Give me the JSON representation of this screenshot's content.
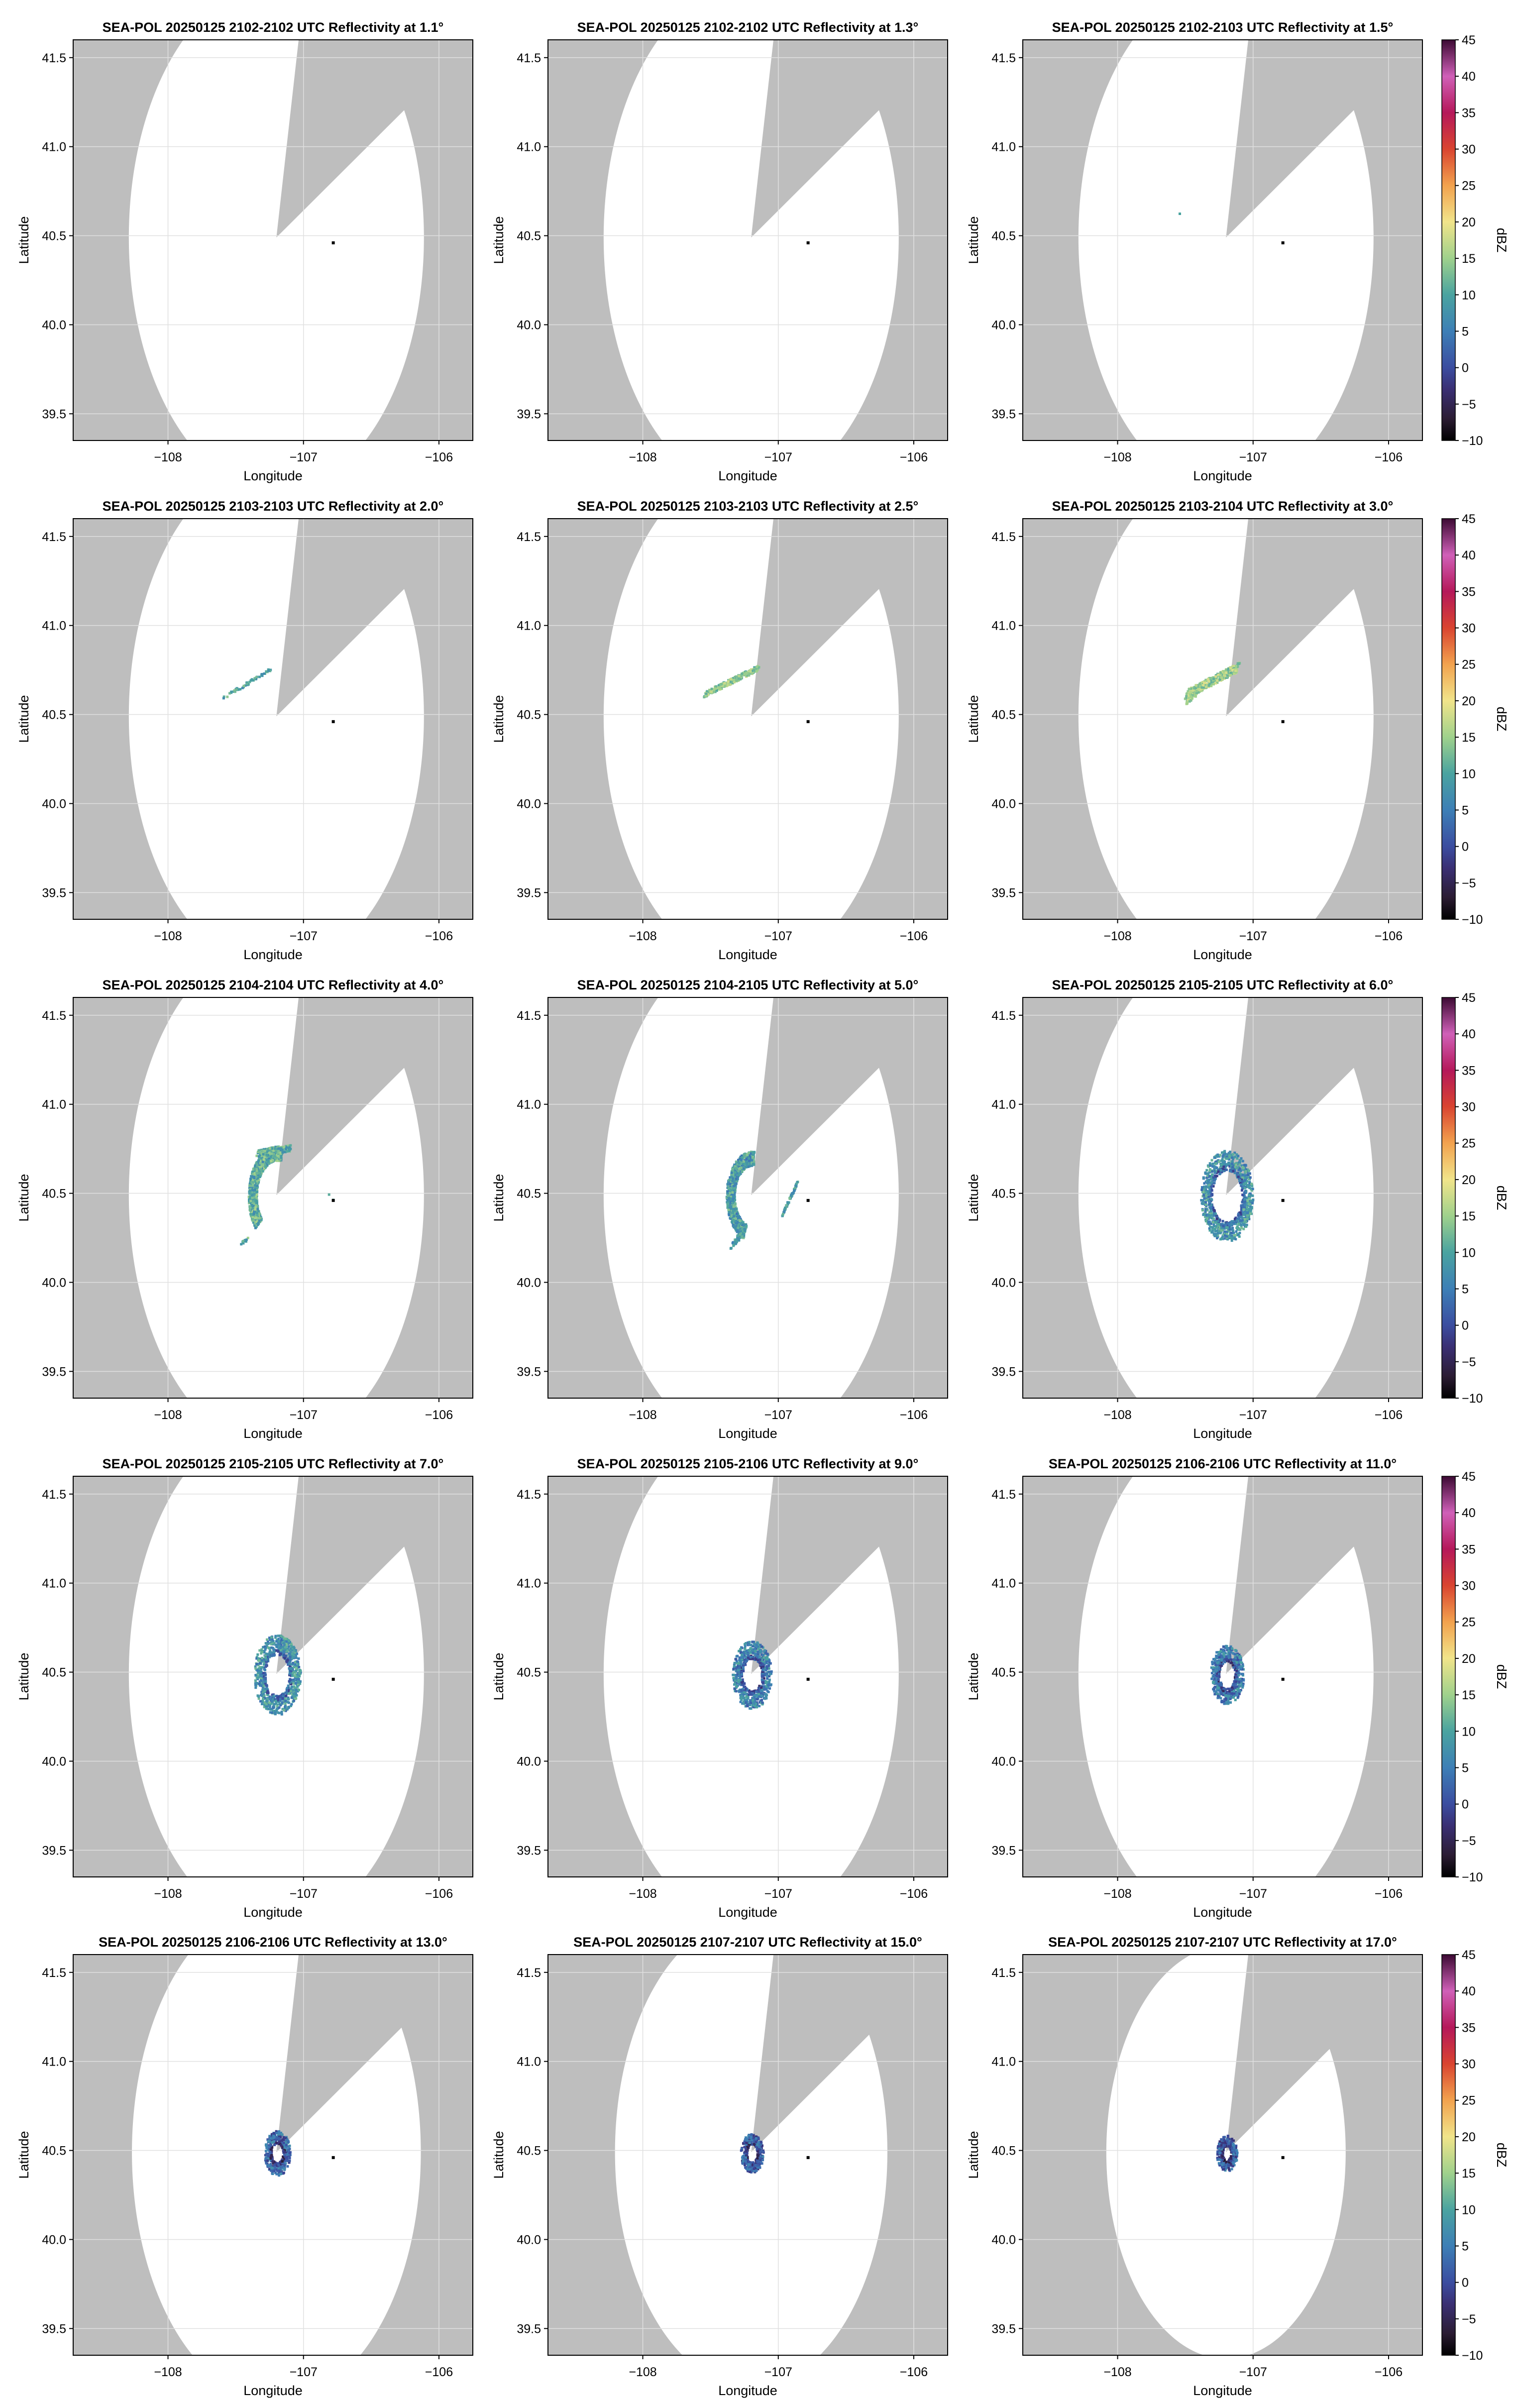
{
  "figure": {
    "rows": 5,
    "cols": 3
  },
  "colorbar": {
    "label": "dBZ",
    "min": -10,
    "max": 45,
    "ticks": [
      45,
      40,
      35,
      30,
      25,
      20,
      15,
      10,
      5,
      0,
      -5,
      -10
    ],
    "tick_labels": [
      "45",
      "40",
      "35",
      "30",
      "25",
      "20",
      "15",
      "10",
      "5",
      "0",
      "−5",
      "−10"
    ],
    "colormap_stops": [
      {
        "v": -10,
        "c": "#000000"
      },
      {
        "v": -7,
        "c": "#2b1c33"
      },
      {
        "v": -3,
        "c": "#3a2f73"
      },
      {
        "v": 0,
        "c": "#3b4da0"
      },
      {
        "v": 5,
        "c": "#3d7fb6"
      },
      {
        "v": 10,
        "c": "#4aa3a0"
      },
      {
        "v": 15,
        "c": "#9fd18c"
      },
      {
        "v": 20,
        "c": "#f1e48a"
      },
      {
        "v": 25,
        "c": "#f2a24e"
      },
      {
        "v": 30,
        "c": "#d94430"
      },
      {
        "v": 35,
        "c": "#b5185a"
      },
      {
        "v": 40,
        "c": "#d060b8"
      },
      {
        "v": 45,
        "c": "#3c0a33"
      }
    ]
  },
  "colors": {
    "no_coverage": "#bebebe",
    "coverage": "#ffffff",
    "grid": "#e0e0e0",
    "axes": "#000000"
  },
  "chart_data": {
    "type": "heatmap",
    "xlabel": "Longitude",
    "ylabel": "Latitude",
    "xlim": [
      -108.7,
      -105.75
    ],
    "ylim": [
      39.35,
      41.6
    ],
    "x_ticks": [
      -108,
      -107,
      -106
    ],
    "x_tick_labels": [
      "−108",
      "−107",
      "−106"
    ],
    "y_ticks": [
      39.5,
      40.0,
      40.5,
      41.0,
      41.5
    ],
    "y_tick_labels": [
      "39.5",
      "40.0",
      "40.5",
      "41.0",
      "41.5"
    ],
    "grid": true,
    "radar_center": {
      "lon": -107.2,
      "lat": 40.49
    },
    "site_marker": {
      "lon": -106.78,
      "lat": 40.46
    },
    "panels": [
      {
        "title": "SEA-POL 20250125 2102-2102 UTC Reflectivity at 1.1°",
        "elevation": 1.1,
        "coverage_radius_deg": 1.43,
        "echo": "none"
      },
      {
        "title": "SEA-POL 20250125 2102-2102 UTC Reflectivity at 1.3°",
        "elevation": 1.3,
        "coverage_radius_deg": 1.43,
        "echo": "none"
      },
      {
        "title": "SEA-POL 20250125 2102-2103 UTC Reflectivity at 1.5°",
        "elevation": 1.5,
        "coverage_radius_deg": 1.43,
        "echo": "trace",
        "echo_dbz": 10
      },
      {
        "title": "SEA-POL 20250125 2103-2103 UTC Reflectivity at 2.0°",
        "elevation": 2.0,
        "coverage_radius_deg": 1.43,
        "echo": "band_light",
        "echo_dbz": 10
      },
      {
        "title": "SEA-POL 20250125 2103-2103 UTC Reflectivity at 2.5°",
        "elevation": 2.5,
        "coverage_radius_deg": 1.43,
        "echo": "band",
        "echo_dbz": 14
      },
      {
        "title": "SEA-POL 20250125 2103-2104 UTC Reflectivity at 3.0°",
        "elevation": 3.0,
        "coverage_radius_deg": 1.43,
        "echo": "band_wide",
        "echo_dbz": 15
      },
      {
        "title": "SEA-POL 20250125 2104-2104 UTC Reflectivity at 4.0°",
        "elevation": 4.0,
        "coverage_radius_deg": 1.43,
        "echo": "arc_4",
        "echo_dbz": 11
      },
      {
        "title": "SEA-POL 20250125 2104-2105 UTC Reflectivity at 5.0°",
        "elevation": 5.0,
        "coverage_radius_deg": 1.43,
        "echo": "arc_5",
        "echo_dbz": 9
      },
      {
        "title": "SEA-POL 20250125 2105-2105 UTC Reflectivity at 6.0°",
        "elevation": 6.0,
        "coverage_radius_deg": 1.43,
        "echo": "ring",
        "ring_radius_deg": 0.2,
        "ring_width_deg": 0.11,
        "echo_dbz": 8
      },
      {
        "title": "SEA-POL 20250125 2105-2105 UTC Reflectivity at 7.0°",
        "elevation": 7.0,
        "coverage_radius_deg": 1.43,
        "echo": "ring",
        "ring_radius_deg": 0.17,
        "ring_width_deg": 0.11,
        "echo_dbz": 8
      },
      {
        "title": "SEA-POL 20250125 2105-2106 UTC Reflectivity at 9.0°",
        "elevation": 9.0,
        "coverage_radius_deg": 1.43,
        "echo": "ring",
        "ring_radius_deg": 0.14,
        "ring_width_deg": 0.1,
        "echo_dbz": 6
      },
      {
        "title": "SEA-POL 20250125 2106-2106 UTC Reflectivity at 11.0°",
        "elevation": 11.0,
        "coverage_radius_deg": 1.43,
        "echo": "ring",
        "ring_radius_deg": 0.12,
        "ring_width_deg": 0.09,
        "echo_dbz": 5
      },
      {
        "title": "SEA-POL 20250125 2106-2106 UTC Reflectivity at 13.0°",
        "elevation": 13.0,
        "coverage_radius_deg": 1.4,
        "echo": "ring",
        "ring_radius_deg": 0.09,
        "ring_width_deg": 0.07,
        "echo_dbz": 3
      },
      {
        "title": "SEA-POL 20250125 2107-2107 UTC Reflectivity at 15.0°",
        "elevation": 15.0,
        "coverage_radius_deg": 1.32,
        "echo": "ring",
        "ring_radius_deg": 0.08,
        "ring_width_deg": 0.06,
        "echo_dbz": 2
      },
      {
        "title": "SEA-POL 20250125 2107-2107 UTC Reflectivity at 17.0°",
        "elevation": 17.0,
        "coverage_radius_deg": 1.16,
        "echo": "ring",
        "ring_radius_deg": 0.07,
        "ring_width_deg": 0.06,
        "echo_dbz": 2
      }
    ]
  }
}
